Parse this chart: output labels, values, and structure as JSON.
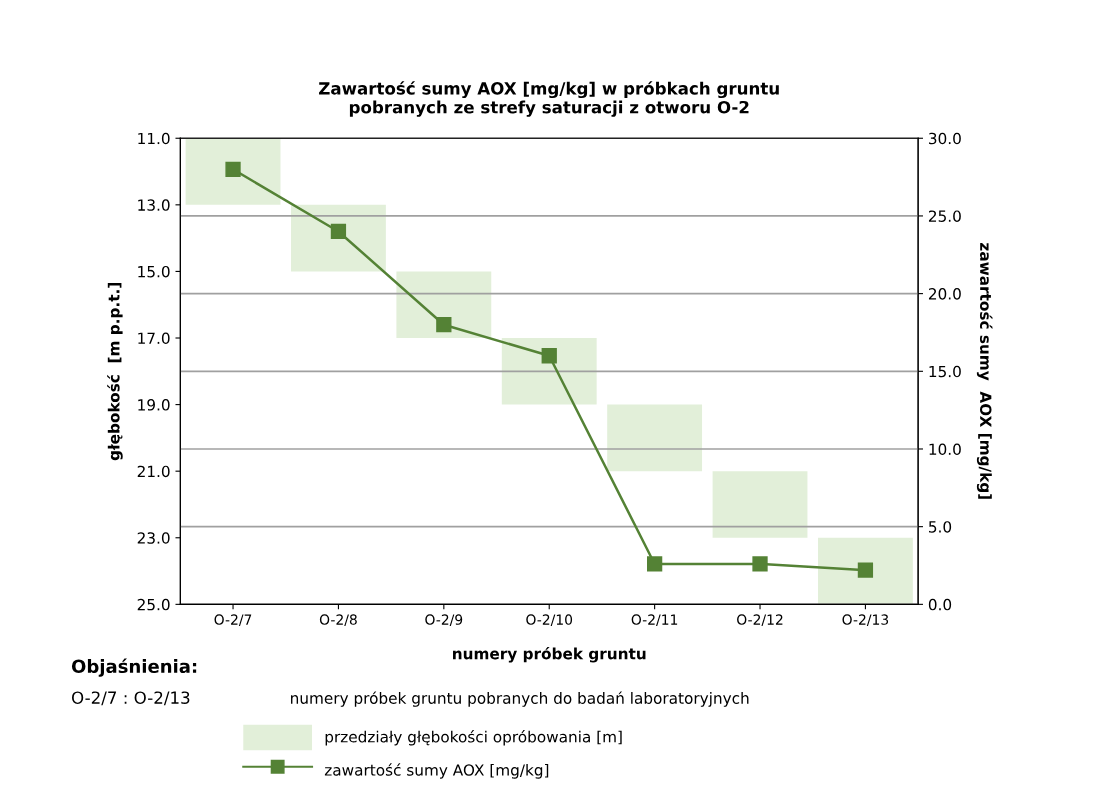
{
  "chart_data": {
    "type": "bar",
    "title": "Zawartość sumy AOX [mg/kg] w próbkach gruntu\npobranych ze strefy saturacji z otworu O-2",
    "xlabel": "numery próbek gruntu",
    "ylabel": "głębokość  [m p.p.t.]",
    "y2label": "zawartość sumy  AOX [mg/kg]",
    "categories": [
      "O-2/7",
      "O-2/8",
      "O-2/9",
      "O-2/10",
      "O-2/11",
      "O-2/12",
      "O-2/13"
    ],
    "series": [
      {
        "name": "przedziały głębokości opróbowania [m]",
        "color": "#e2efd9",
        "values": [
          2,
          2,
          2,
          2,
          2,
          2,
          2
        ],
        "base": [
          11,
          13,
          15,
          17,
          19,
          21,
          23
        ]
      },
      {
        "name": "zawartość sumy AOX [mg/kg]",
        "type": "line",
        "axis": "y2",
        "color": "#548235",
        "values": [
          28.0,
          24.0,
          18.0,
          16.0,
          2.6,
          2.6,
          2.2
        ],
        "marker": "square",
        "line_style": "solid"
      }
    ],
    "ylim": [
      25,
      11
    ],
    "yticks": [
      {
        "value": 11,
        "label": "11.0"
      },
      {
        "value": 13,
        "label": "13.0"
      },
      {
        "value": 15,
        "label": "15.0"
      },
      {
        "value": 17,
        "label": "17.0"
      },
      {
        "value": 19,
        "label": "19.0"
      },
      {
        "value": 21,
        "label": "21.0"
      },
      {
        "value": 23,
        "label": "23.0"
      },
      {
        "value": 25,
        "label": "25.0"
      }
    ],
    "y2lim": [
      0,
      30
    ],
    "y2ticks": [
      {
        "value": 0,
        "label": "0.0"
      },
      {
        "value": 5,
        "label": "5.0"
      },
      {
        "value": 10,
        "label": "10.0"
      },
      {
        "value": 15,
        "label": "15.0"
      },
      {
        "value": 20,
        "label": "20.0"
      },
      {
        "value": 25,
        "label": "25.0"
      },
      {
        "value": 30,
        "label": "30.0"
      }
    ],
    "grid": true,
    "legend": "bottom",
    "legend_title": "Objaśnienia:",
    "annotations": [
      "O-2/7 : O-2/13",
      "numery próbek gruntu pobranych do badań laboratoryjnych"
    ]
  }
}
